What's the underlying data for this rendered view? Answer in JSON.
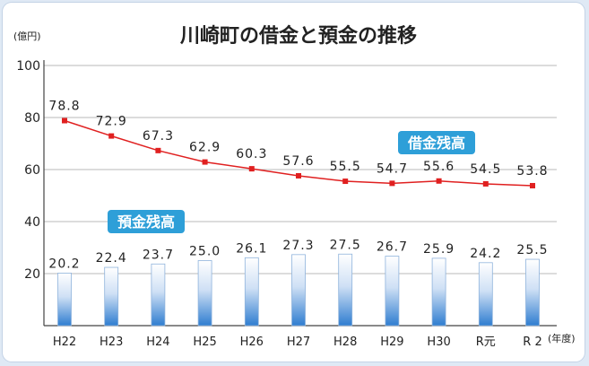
{
  "chart_data": {
    "type": "bar+line",
    "title": "川崎町の借金と預金の推移",
    "y_unit_label": "(億円)",
    "x_unit_label": "(年度)",
    "categories": [
      "H22",
      "H23",
      "H24",
      "H25",
      "H26",
      "H27",
      "H28",
      "H29",
      "H30",
      "R元",
      "R 2"
    ],
    "ylim": [
      0,
      100
    ],
    "yticks": [
      "100",
      "80",
      "60",
      "40",
      "20"
    ],
    "ytick_values": [
      100,
      80,
      60,
      40,
      20
    ],
    "grid": true,
    "series": [
      {
        "name": "借金残高",
        "type": "line",
        "color": "#e02020",
        "values": [
          78.8,
          72.9,
          67.3,
          62.9,
          60.3,
          57.6,
          55.5,
          54.7,
          55.6,
          54.5,
          53.8
        ],
        "labels": [
          "78.8",
          "72.9",
          "67.3",
          "62.9",
          "60.3",
          "57.6",
          "55.5",
          "54.7",
          "55.6",
          "54.5",
          "53.8"
        ]
      },
      {
        "name": "預金残高",
        "type": "bar",
        "color": "#2f7dd0",
        "values": [
          20.2,
          22.4,
          23.7,
          25.0,
          26.1,
          27.3,
          27.5,
          26.7,
          25.9,
          24.2,
          25.5
        ],
        "labels": [
          "20.2",
          "22.4",
          "23.7",
          "25.0",
          "26.1",
          "27.3",
          "27.5",
          "26.7",
          "25.9",
          "24.2",
          "25.5"
        ]
      }
    ],
    "badge_color": "#2e9fd8"
  }
}
